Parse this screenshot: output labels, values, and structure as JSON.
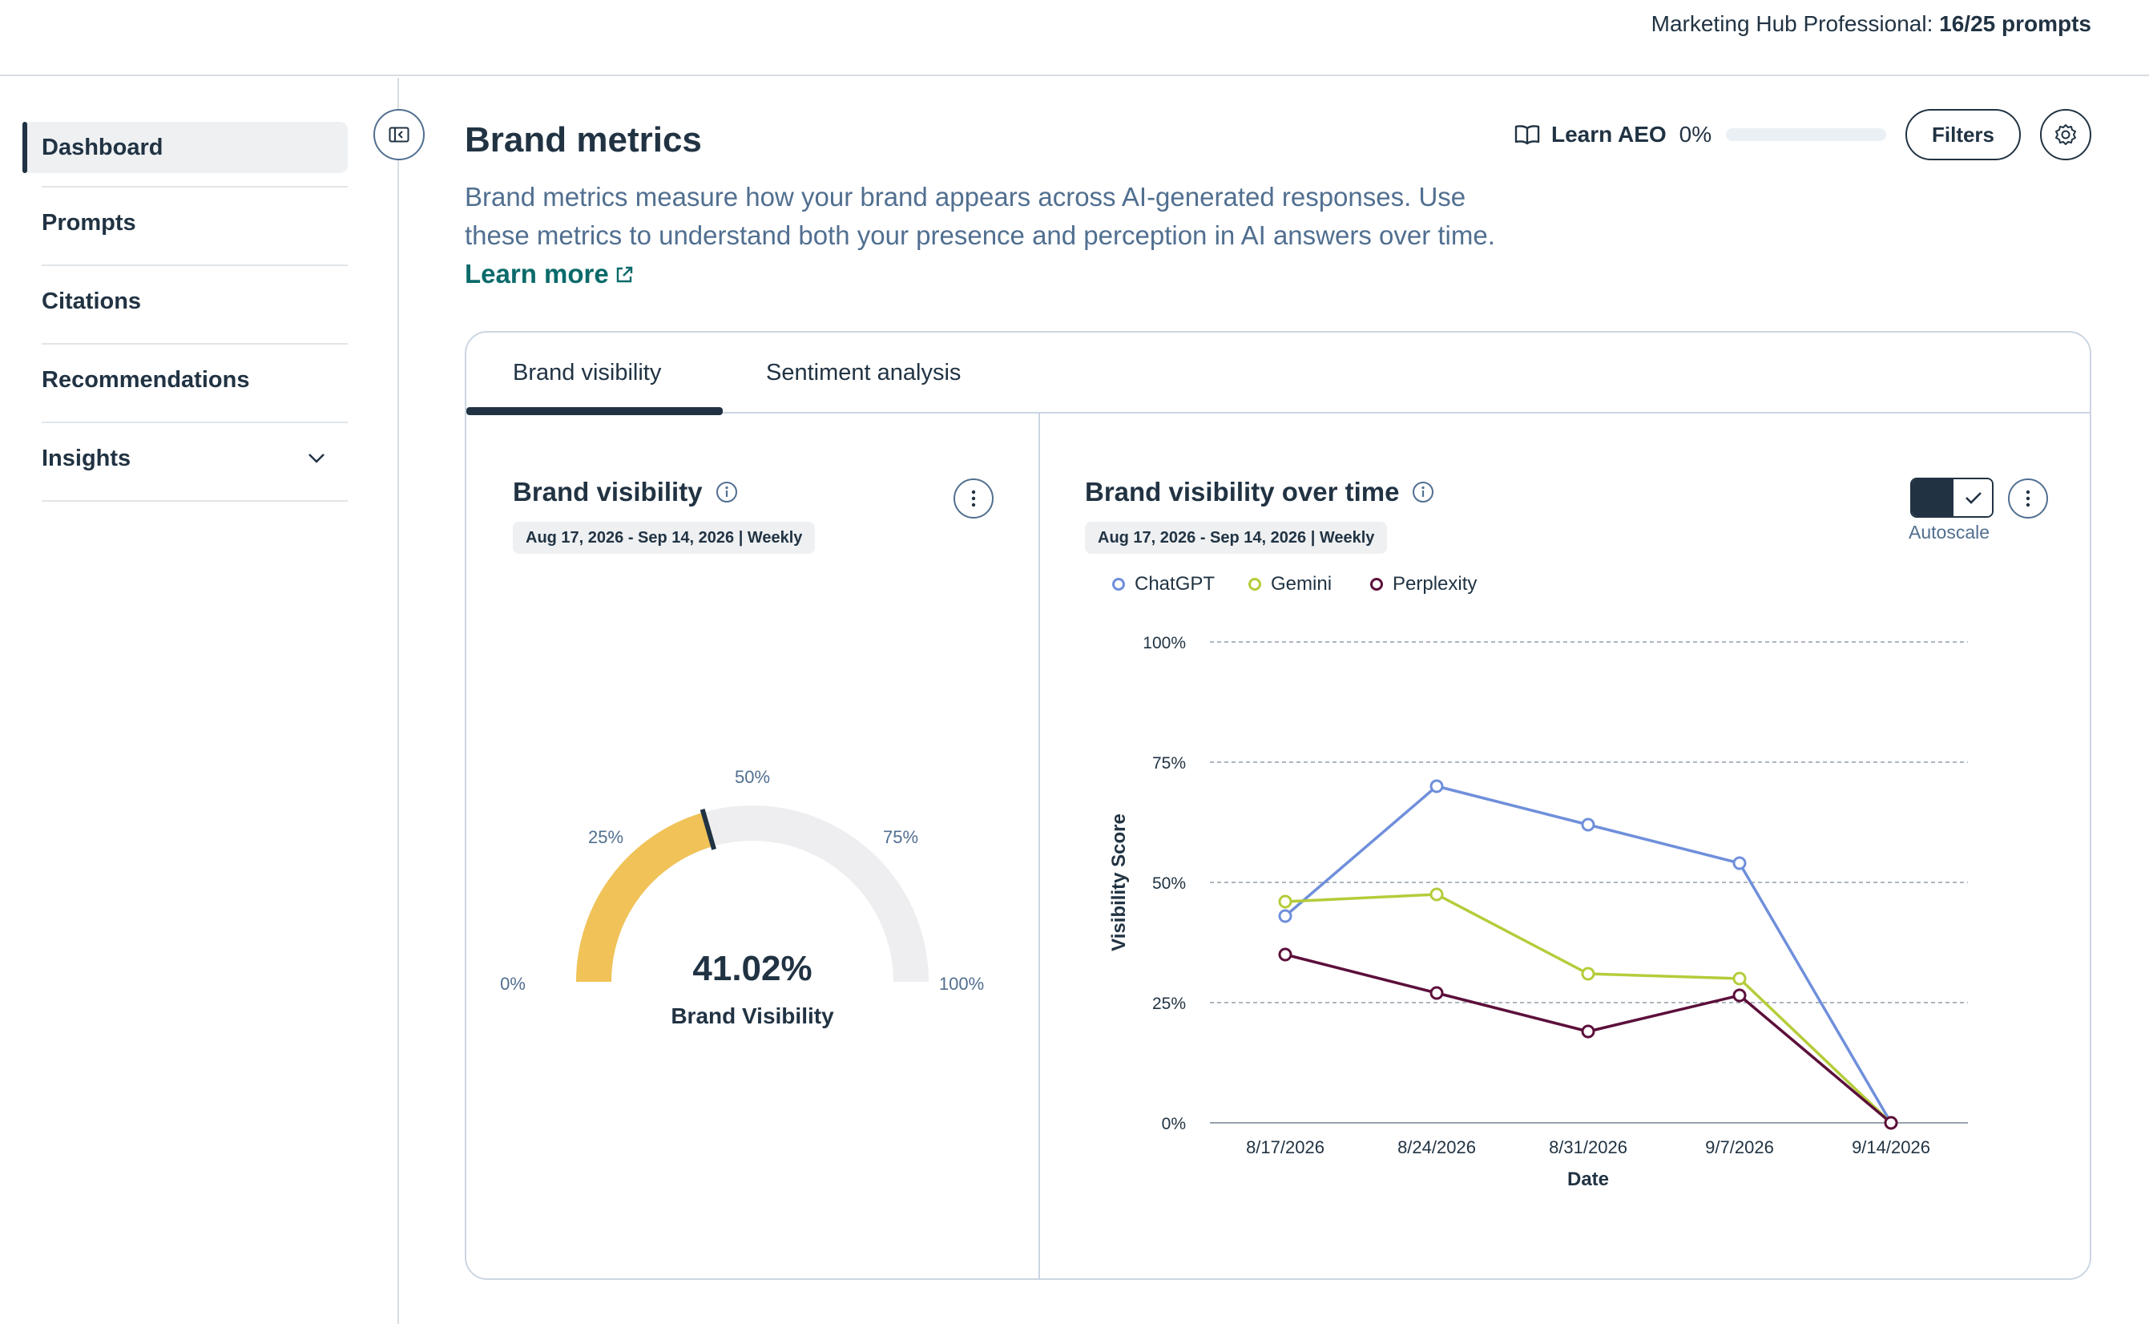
{
  "topbar": {
    "plan_label": "Marketing Hub Professional:",
    "plan_usage": "16/25 prompts"
  },
  "sidebar": {
    "items": [
      {
        "label": "Dashboard",
        "active": true
      },
      {
        "label": "Prompts"
      },
      {
        "label": "Citations"
      },
      {
        "label": "Recommendations"
      },
      {
        "label": "Insights",
        "expandable": true
      }
    ]
  },
  "header": {
    "title": "Brand metrics",
    "description": "Brand metrics measure how your brand appears across AI-generated responses. Use these metrics to understand both your presence and perception in AI answers over time.",
    "learn_more": "Learn more",
    "learn_aeo_label": "Learn AEO",
    "learn_aeo_percent": "0%",
    "learn_aeo_progress": 0,
    "filters_label": "Filters"
  },
  "tabs": [
    {
      "label": "Brand visibility",
      "active": true
    },
    {
      "label": "Sentiment analysis"
    }
  ],
  "gauge_panel": {
    "title": "Brand visibility",
    "date_range": "Aug 17, 2026 - Sep 14, 2026 | Weekly",
    "value": 41.02,
    "value_label": "41.02%",
    "caption": "Brand Visibility",
    "tick_labels": [
      "0%",
      "25%",
      "50%",
      "75%",
      "100%"
    ],
    "fill_color": "#f0c257",
    "track_color": "#eeeef0"
  },
  "line_panel": {
    "title": "Brand visibility over time",
    "date_range": "Aug 17, 2026 - Sep 14, 2026 | Weekly",
    "autoscale_label": "Autoscale",
    "autoscale_on": true
  },
  "chart_data": {
    "type": "line",
    "x": [
      "8/17/2026",
      "8/24/2026",
      "8/31/2026",
      "9/7/2026",
      "9/14/2026"
    ],
    "series": [
      {
        "name": "ChatGPT",
        "color": "#6f8fdb",
        "values": [
          43,
          70,
          62,
          54,
          0
        ]
      },
      {
        "name": "Gemini",
        "color": "#b5cc3a",
        "values": [
          46,
          47.5,
          31,
          30,
          0
        ]
      },
      {
        "name": "Perplexity",
        "color": "#5c0f3a",
        "values": [
          35,
          27,
          19,
          26.5,
          0
        ]
      }
    ],
    "xlabel": "Date",
    "ylabel": "Visibility Score",
    "ylim": [
      0,
      100
    ],
    "yticks": [
      0,
      25,
      50,
      75,
      100
    ],
    "ytick_labels": [
      "0%",
      "25%",
      "50%",
      "75%",
      "100%"
    ],
    "grid": true,
    "legend_position": "top-left"
  }
}
